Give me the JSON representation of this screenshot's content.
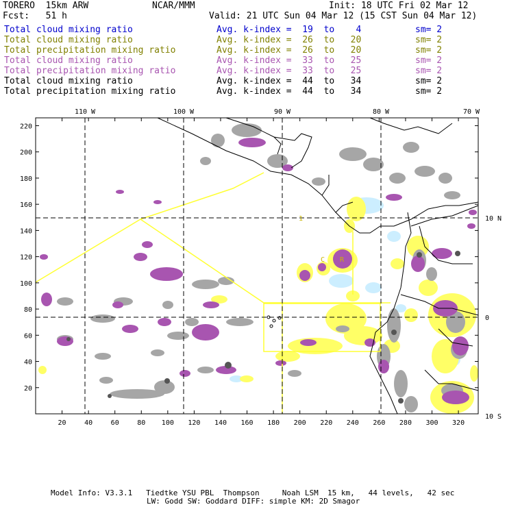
{
  "header": {
    "model": "TORERO  15km ARW",
    "center": "NCAR/MMM",
    "init": "Init: 18 UTC Fri 02 Mar 12",
    "fcst": "Fcst:   51 h",
    "valid": "Valid: 21 UTC Sun 04 Mar 12 (15 CST Sun 04 Mar 12)"
  },
  "legend": [
    {
      "label": "Total cloud mixing ratio",
      "index": "Avg. k-index =  19  to    4",
      "sm": "sm= 2",
      "color": "#0000cc"
    },
    {
      "label": "Total cloud mixing ratio",
      "index": "Avg. k-index =  26  to   20",
      "sm": "sm= 2",
      "color": "#808000"
    },
    {
      "label": "Total precipitation mixing ratio",
      "index": "Avg. k-index =  26  to   20",
      "sm": "sm= 2",
      "color": "#808000"
    },
    {
      "label": "Total cloud mixing ratio",
      "index": "Avg. k-index =  33  to   25",
      "sm": "sm= 2",
      "color": "#a855b0"
    },
    {
      "label": "Total precipitation mixing ratio",
      "index": "Avg. k-index =  33  to   25",
      "sm": "sm= 2",
      "color": "#a855b0"
    },
    {
      "label": "Total cloud mixing ratio",
      "index": "Avg. k-index =  44  to   34",
      "sm": "sm= 2",
      "color": "#000000"
    },
    {
      "label": "Total precipitation mixing ratio",
      "index": "Avg. k-index =  44  to   34",
      "sm": "sm= 2",
      "color": "#000000"
    }
  ],
  "map": {
    "lon_labels": [
      "110 W",
      "100 W",
      "90 W",
      "80 W",
      "70 W"
    ],
    "lat_labels": [
      "10 N",
      "0",
      "10 S"
    ],
    "x_ticks": [
      "20",
      "40",
      "60",
      "80",
      "100",
      "120",
      "140",
      "160",
      "180",
      "200",
      "220",
      "240",
      "260",
      "280",
      "300",
      "320"
    ],
    "y_ticks": [
      "20",
      "40",
      "60",
      "80",
      "100",
      "120",
      "140",
      "160",
      "180",
      "200",
      "220"
    ],
    "x_range": [
      0,
      335
    ],
    "y_range": [
      0,
      226
    ],
    "colors": {
      "gray": "#a6a6a6",
      "dark_gray": "#555555",
      "purple": "#a855b0",
      "light_purple": "#cf9bd2",
      "yellow": "#ffff66",
      "cyan": "#cceeff",
      "boundary": "#ffff33",
      "coast": "#000000"
    },
    "annotations": [
      "1",
      "C",
      "R"
    ]
  },
  "footer": {
    "line1": "Model Info: V3.3.1   Tiedtke YSU PBL  Thompson     Noah LSM  15 km,   44 levels,   42 sec",
    "line2": "LW: Godd SW: Goddard DIFF: simple KM: 2D Smagor"
  }
}
